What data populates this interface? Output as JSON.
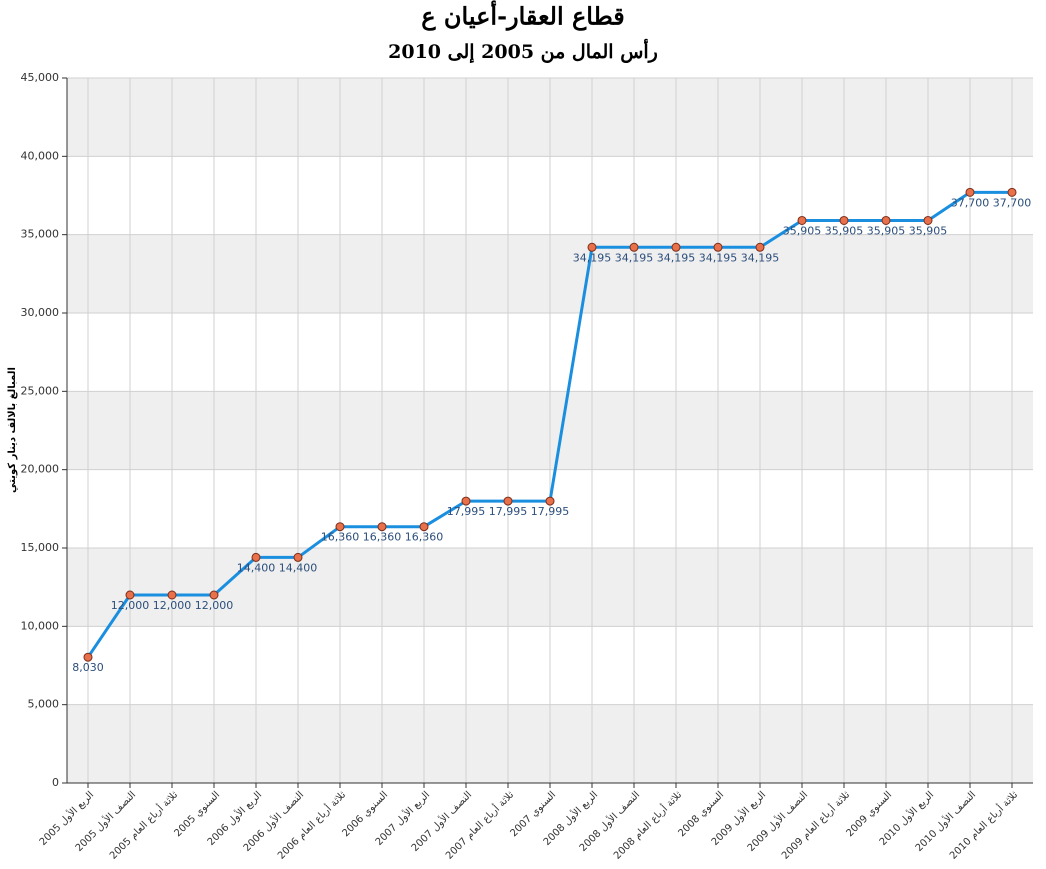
{
  "chart_data": {
    "type": "line",
    "title": "قطاع العقار-أعيان ع",
    "subtitle": "رأس المال من 2005 إلى 2010",
    "y_label": "المبالغ بالالف دينار كويتي",
    "categories": [
      "الربع الأول 2005",
      "النصف الأول 2005",
      "ثلاثة أرباع العام 2005",
      "السنوي 2005",
      "الربع الأول 2006",
      "النصف الأول 2006",
      "ثلاثة أرباع العام 2006",
      "السنوي 2006",
      "الربع الأول 2007",
      "النصف الأول 2007",
      "ثلاثة أرباع العام 2007",
      "السنوي 2007",
      "الربع الأول 2008",
      "النصف الأول 2008",
      "ثلاثة أرباع العام 2008",
      "السنوي 2008",
      "الربع الأول 2009",
      "النصف الأول 2009",
      "ثلاثة أرباع العام 2009",
      "السنوي 2009",
      "الربع الأول 2010",
      "النصف الأول 2010",
      "ثلاثة أرباع العام 2010"
    ],
    "values": [
      8030,
      12000,
      12000,
      12000,
      14400,
      14400,
      16360,
      16360,
      16360,
      17995,
      17995,
      17995,
      34195,
      34195,
      34195,
      34195,
      34195,
      35905,
      35905,
      35905,
      35905,
      37700,
      37700
    ],
    "value_labels": [
      "8,030",
      "12,000",
      "12,000",
      "12,000",
      "14,400",
      "14,400",
      "16,360",
      "16,360",
      "16,360",
      "17,995",
      "17,995",
      "17,995",
      "34,195",
      "34,195",
      "34,195",
      "34,195",
      "34,195",
      "35,905",
      "35,905",
      "35,905",
      "35,905",
      "37,700",
      "37,700"
    ],
    "color": "#1a8fe0",
    "marker_color": "#e8704a",
    "ylim": [
      0,
      45000
    ],
    "yticks": [
      0,
      {
        "value": 5000,
        "label": "5,000"
      },
      {
        "value": 10000,
        "label": "10,000"
      },
      {
        "value": 15000,
        "label": "15,000"
      },
      {
        "value": 20000,
        "label": "20,000"
      },
      {
        "value": 25000,
        "label": "25,000"
      },
      {
        "value": 30000,
        "label": "30,000"
      },
      {
        "value": 35000,
        "label": "35,000"
      },
      {
        "value": 40000,
        "label": "40,000"
      },
      {
        "value": 45000,
        "label": "45,000"
      }
    ],
    "grid": true
  }
}
